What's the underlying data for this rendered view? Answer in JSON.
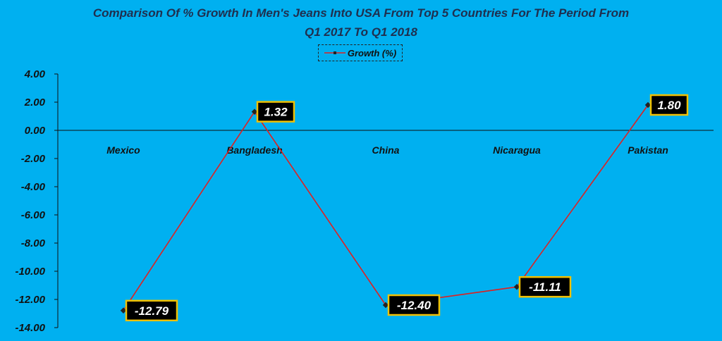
{
  "chart_data": {
    "type": "line",
    "title_line1": "Comparison  Of  % Growth In Men's Jeans Into USA From Top 5 Countries For The Period From",
    "title_line2": "Q1 2017 To Q1 2018",
    "categories": [
      "Mexico",
      "Bangladesh",
      "China",
      "Nicaragua",
      "Pakistan"
    ],
    "series": [
      {
        "name": "Growth (%)",
        "values": [
          -12.79,
          1.32,
          -12.4,
          -11.11,
          1.8
        ],
        "labels": [
          "-12.79",
          "1.32",
          "-12.40",
          "-11.11",
          "1.80"
        ]
      }
    ],
    "ylim": [
      -14,
      4
    ],
    "yticks": [
      4,
      2,
      0,
      -2,
      -4,
      -6,
      -8,
      -10,
      -12,
      -14
    ],
    "ytick_labels": [
      "4.00",
      "2.00",
      "0.00",
      "-2.00",
      "-4.00",
      "-6.00",
      "-8.00",
      "-10.00",
      "-12.00",
      "-14.00"
    ],
    "legend_position": "top-center",
    "grid": false,
    "colors": {
      "background": "#00B0F0",
      "line": "#E02020",
      "marker": "#222222",
      "label_box": "#000000",
      "label_border": "#F0C000",
      "label_text": "#FFFFFF"
    }
  }
}
